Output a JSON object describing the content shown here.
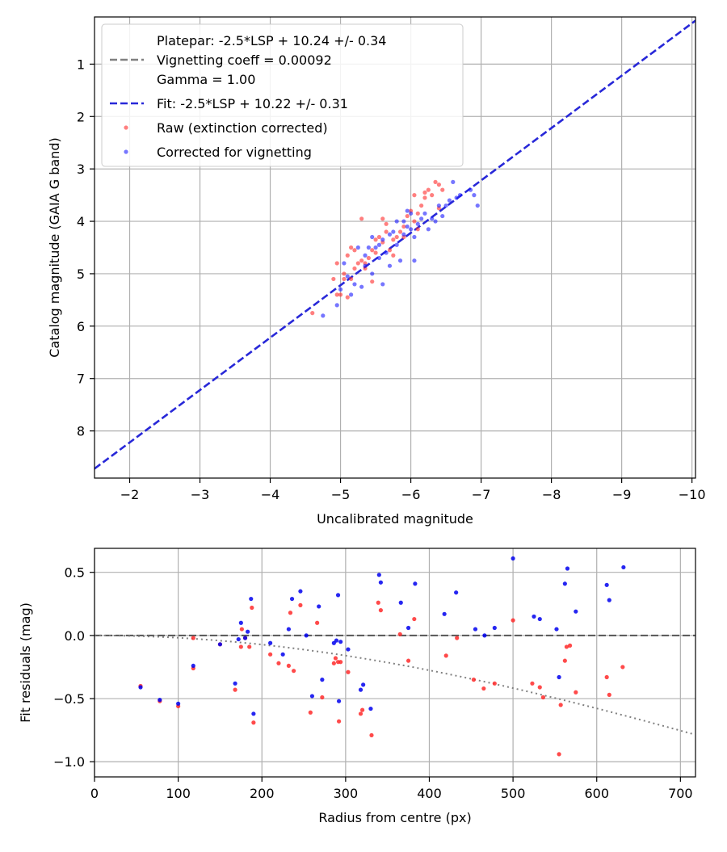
{
  "chart_data": [
    {
      "type": "scatter",
      "xlabel": "Uncalibrated magnitude",
      "ylabel": "Catalog magnitude (GAIA G band)",
      "xlim": [
        -1.5,
        -10.05
      ],
      "ylim": [
        8.9,
        0.1
      ],
      "x_inverted": true,
      "y_inverted": true,
      "xticks": [
        -2,
        -3,
        -4,
        -5,
        -6,
        -7,
        -8,
        -9,
        -10
      ],
      "xtick_labels": [
        "−2",
        "−3",
        "−4",
        "−5",
        "−6",
        "−7",
        "−8",
        "−9",
        "−10"
      ],
      "yticks": [
        1,
        2,
        3,
        4,
        5,
        6,
        7,
        8
      ],
      "ytick_labels": [
        "1",
        "2",
        "3",
        "4",
        "5",
        "6",
        "7",
        "8"
      ],
      "grid": true,
      "legend": {
        "position": "upper-left",
        "entries": [
          {
            "label": "Platepar: -2.5*LSP + 10.24 +/- 0.34"
          },
          {
            "label": "Vignetting coeff = 0.00092"
          },
          {
            "label": "Gamma = 1.00"
          },
          {
            "label": "Fit: -2.5*LSP + 10.22 +/- 0.31"
          },
          {
            "label": "Raw (extinction corrected)"
          },
          {
            "label": "Corrected for vignetting"
          }
        ]
      },
      "lines": [
        {
          "name": "Platepar: -2.5*LSP + 10.24 +/- 0.34",
          "style": "dashed",
          "color": "#808080",
          "intercept": 10.24
        },
        {
          "name": "Fit: -2.5*LSP + 10.22 +/- 0.31",
          "style": "dashed",
          "color": "#2828d8",
          "x": [
            -1.5,
            -10.05
          ],
          "y": [
            8.72,
            0.17
          ]
        }
      ],
      "series": [
        {
          "name": "Raw (extinction corrected)",
          "color": "#ff2a2a",
          "x": [
            -4.6,
            -4.9,
            -4.95,
            -5.0,
            -5.05,
            -5.1,
            -5.15,
            -5.15,
            -5.2,
            -5.25,
            -5.3,
            -5.35,
            -5.4,
            -5.45,
            -5.45,
            -5.5,
            -5.55,
            -5.6,
            -5.65,
            -5.7,
            -5.75,
            -5.8,
            -5.85,
            -5.9,
            -5.95,
            -6.0,
            -6.05,
            -6.1,
            -6.15,
            -6.2,
            -6.25,
            -6.3,
            -6.35,
            -6.4,
            -6.45,
            -5.5,
            -5.3,
            -5.2,
            -5.1,
            -4.95,
            -5.05,
            -5.35,
            -5.6,
            -5.75,
            -5.9,
            -6.05,
            -6.2,
            -6.4,
            -6.1,
            -5.65
          ],
          "y": [
            5.75,
            5.1,
            4.8,
            5.4,
            5.1,
            4.65,
            4.5,
            5.1,
            4.55,
            4.8,
            4.75,
            4.8,
            4.7,
            4.55,
            5.15,
            4.6,
            4.3,
            4.4,
            4.2,
            4.55,
            4.35,
            4.3,
            4.2,
            4.1,
            3.9,
            3.8,
            4.0,
            3.85,
            3.7,
            3.55,
            3.4,
            3.5,
            3.25,
            3.3,
            3.4,
            4.35,
            3.95,
            4.9,
            5.45,
            5.4,
            5.0,
            4.9,
            3.95,
            4.65,
            4.3,
            3.5,
            3.45,
            3.75,
            4.15,
            4.05
          ]
        },
        {
          "name": "Corrected for vignetting",
          "color": "#1a1aff",
          "x": [
            -4.75,
            -4.95,
            -5.05,
            -5.1,
            -5.15,
            -5.2,
            -5.3,
            -5.35,
            -5.4,
            -5.45,
            -5.5,
            -5.55,
            -5.6,
            -5.65,
            -5.7,
            -5.75,
            -5.8,
            -5.85,
            -5.9,
            -5.95,
            -6.0,
            -6.05,
            -6.1,
            -6.2,
            -6.25,
            -6.3,
            -6.4,
            -6.5,
            -6.6,
            -6.7,
            -6.85,
            -6.95,
            -6.9,
            -6.55,
            -6.15,
            -5.95,
            -5.45,
            -5.25,
            -5.0,
            -5.8,
            -6.05,
            -6.35,
            -5.55,
            -5.7,
            -5.6,
            -6.0,
            -6.45,
            -5.35,
            -5.9,
            -6.65
          ],
          "y": [
            5.8,
            5.6,
            4.8,
            5.05,
            5.4,
            5.2,
            5.25,
            4.85,
            4.5,
            5.0,
            4.5,
            4.7,
            4.35,
            4.6,
            4.85,
            4.2,
            4.45,
            4.75,
            4.25,
            4.1,
            4.15,
            4.3,
            4.05,
            3.85,
            4.15,
            3.95,
            3.7,
            3.7,
            3.25,
            3.5,
            3.4,
            3.7,
            3.5,
            3.6,
            3.95,
            3.8,
            4.3,
            4.5,
            5.3,
            4.0,
            4.75,
            4.0,
            4.45,
            4.25,
            5.2,
            3.85,
            3.9,
            4.65,
            4.0,
            3.55
          ]
        }
      ]
    },
    {
      "type": "scatter",
      "xlabel": "Radius from centre (px)",
      "ylabel": "Fit residuals (mag)",
      "xlim": [
        0,
        718
      ],
      "ylim": [
        -1.12,
        0.69
      ],
      "xticks": [
        0,
        100,
        200,
        300,
        400,
        500,
        600,
        700
      ],
      "xtick_labels": [
        "0",
        "100",
        "200",
        "300",
        "400",
        "500",
        "600",
        "700"
      ],
      "yticks": [
        -1.0,
        -0.5,
        0.0,
        0.5
      ],
      "ytick_labels": [
        "−1.0",
        "−0.5",
        "0.0",
        "0.5"
      ],
      "grid": true,
      "lines": [
        {
          "style": "dashed",
          "color": "#555555",
          "y": 0.0
        },
        {
          "style": "dotted",
          "color": "#808080",
          "coeff": 0.00092
        }
      ],
      "series": [
        {
          "name": "Raw (extinction corrected)",
          "color": "#ff2a2a",
          "x": [
            55,
            78,
            100,
            118,
            118,
            150,
            168,
            175,
            176,
            180,
            185,
            188,
            190,
            210,
            220,
            232,
            234,
            238,
            246,
            258,
            266,
            272,
            286,
            288,
            291,
            292,
            294,
            303,
            318,
            320,
            331,
            339,
            342,
            365,
            375,
            382,
            420,
            433,
            453,
            465,
            478,
            500,
            523,
            532,
            536,
            555,
            557,
            562,
            564,
            568,
            575,
            612,
            615,
            631
          ],
          "y": [
            -0.4,
            -0.52,
            -0.56,
            -0.02,
            -0.26,
            -0.07,
            -0.43,
            -0.09,
            0.05,
            -0.02,
            -0.09,
            0.22,
            -0.69,
            -0.15,
            -0.22,
            -0.24,
            0.18,
            -0.28,
            0.24,
            -0.61,
            0.1,
            -0.49,
            -0.22,
            -0.18,
            -0.21,
            -0.68,
            -0.21,
            -0.29,
            -0.62,
            -0.59,
            -0.79,
            0.26,
            0.2,
            0.01,
            -0.2,
            0.13,
            -0.16,
            -0.02,
            -0.35,
            -0.42,
            -0.38,
            0.12,
            -0.38,
            -0.41,
            -0.49,
            -0.94,
            -0.55,
            -0.2,
            -0.09,
            -0.08,
            -0.45,
            -0.33,
            -0.47,
            -0.25
          ]
        },
        {
          "name": "Corrected for vignetting",
          "color": "#0000ee",
          "x": [
            55,
            78,
            100,
            118,
            150,
            168,
            172,
            175,
            180,
            183,
            187,
            190,
            210,
            225,
            232,
            236,
            246,
            253,
            260,
            268,
            272,
            286,
            289,
            291,
            292,
            294,
            303,
            318,
            321,
            330,
            340,
            342,
            366,
            375,
            383,
            418,
            432,
            455,
            466,
            478,
            500,
            525,
            532,
            552,
            555,
            562,
            565,
            575,
            612,
            615,
            632
          ],
          "y": [
            -0.41,
            -0.51,
            -0.54,
            -0.24,
            -0.07,
            -0.38,
            -0.03,
            0.1,
            -0.02,
            0.03,
            0.29,
            -0.62,
            -0.06,
            -0.15,
            0.05,
            0.29,
            0.35,
            0.0,
            -0.48,
            0.23,
            -0.35,
            -0.06,
            -0.04,
            0.32,
            -0.52,
            -0.05,
            -0.11,
            -0.43,
            -0.39,
            -0.58,
            0.48,
            0.42,
            0.26,
            0.06,
            0.41,
            0.17,
            0.34,
            0.05,
            0.0,
            0.06,
            0.61,
            0.15,
            0.13,
            0.05,
            -0.33,
            0.41,
            0.53,
            0.19,
            0.4,
            0.28,
            0.54
          ]
        }
      ]
    }
  ]
}
